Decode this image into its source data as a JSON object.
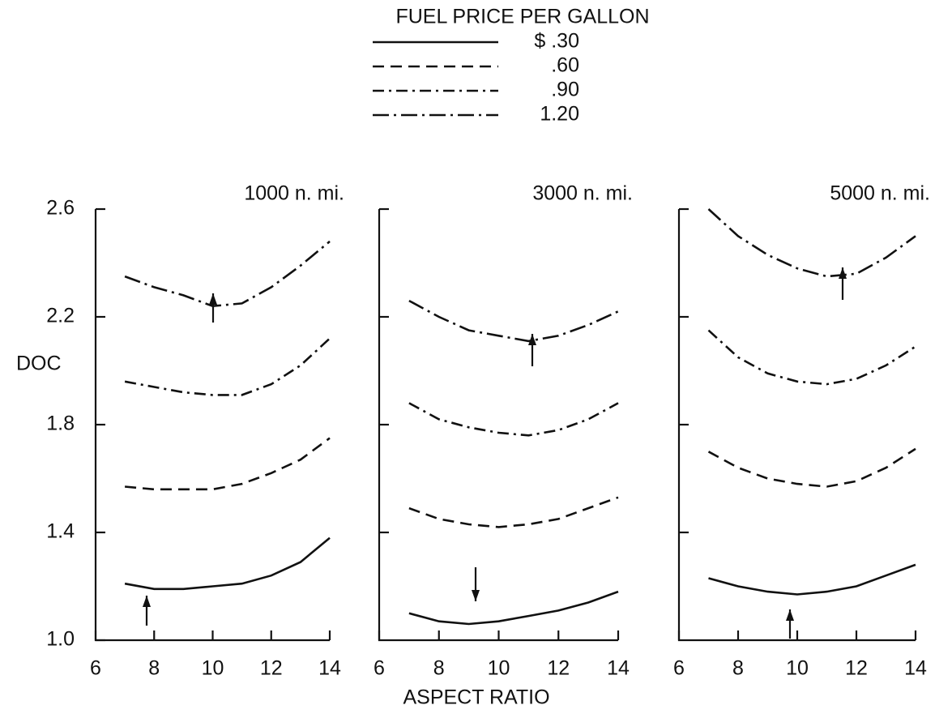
{
  "legend": {
    "title": "FUEL PRICE PER GALLON",
    "entries": [
      {
        "label": "$ .30",
        "dash": "none"
      },
      {
        "label": ".60",
        "dash": "14 8"
      },
      {
        "label": ".90",
        "dash": "14 6 3 6"
      },
      {
        "label": "1.20",
        "dash": "20 6 3 6"
      }
    ]
  },
  "y_label": "DOC",
  "x_label": "ASPECT RATIO",
  "chart_data": [
    {
      "type": "line",
      "title": "1000 n. mi.",
      "x": [
        7,
        8,
        9,
        10,
        11,
        12,
        13,
        14
      ],
      "series": [
        {
          "color": "#111111",
          "values": [
            1.21,
            1.19,
            1.19,
            1.2,
            1.21,
            1.24,
            1.29,
            1.38
          ]
        },
        {
          "color": "#111111",
          "values": [
            1.57,
            1.56,
            1.56,
            1.56,
            1.58,
            1.62,
            1.67,
            1.75
          ]
        },
        {
          "color": "#111111",
          "values": [
            1.96,
            1.94,
            1.92,
            1.91,
            1.91,
            1.95,
            2.02,
            2.12
          ]
        },
        {
          "color": "#111111",
          "values": [
            2.35,
            2.31,
            2.28,
            2.24,
            2.25,
            2.31,
            2.39,
            2.48
          ]
        }
      ],
      "xlim": [
        6,
        14
      ],
      "ylim": [
        1,
        2.6
      ],
      "xticks": [
        6,
        8,
        10,
        12,
        14
      ],
      "yticks": [
        {
          "value": 1,
          "label": "1.0"
        },
        1.4,
        1.8,
        2.2,
        2.6
      ],
      "show_ytick_labels": true
    },
    {
      "type": "line",
      "title": "3000 n. mi.",
      "x": [
        7,
        8,
        9,
        10,
        11,
        12,
        13,
        14
      ],
      "series": [
        {
          "color": "#111111",
          "values": [
            1.1,
            1.07,
            1.06,
            1.07,
            1.09,
            1.11,
            1.14,
            1.18
          ]
        },
        {
          "color": "#111111",
          "values": [
            1.49,
            1.45,
            1.43,
            1.42,
            1.43,
            1.45,
            1.49,
            1.53
          ]
        },
        {
          "color": "#111111",
          "values": [
            1.88,
            1.82,
            1.79,
            1.77,
            1.76,
            1.78,
            1.82,
            1.88
          ]
        },
        {
          "color": "#111111",
          "values": [
            2.26,
            2.2,
            2.15,
            2.13,
            2.11,
            2.13,
            2.17,
            2.22
          ]
        }
      ],
      "xlim": [
        6,
        14
      ],
      "ylim": [
        1,
        2.6
      ],
      "xticks": [
        6,
        8,
        10,
        12,
        14
      ],
      "yticks": [
        1.4,
        1.8,
        2.2,
        2.6
      ],
      "show_ytick_labels": false
    },
    {
      "type": "line",
      "title": "5000 n. mi.",
      "x": [
        7,
        8,
        9,
        10,
        11,
        12,
        13,
        14
      ],
      "series": [
        {
          "color": "#111111",
          "values": [
            1.23,
            1.2,
            1.18,
            1.17,
            1.18,
            1.2,
            1.24,
            1.28
          ]
        },
        {
          "color": "#111111",
          "values": [
            1.7,
            1.64,
            1.6,
            1.58,
            1.57,
            1.59,
            1.64,
            1.71
          ]
        },
        {
          "color": "#111111",
          "values": [
            2.15,
            2.05,
            1.99,
            1.96,
            1.95,
            1.97,
            2.02,
            2.09
          ]
        },
        {
          "color": "#111111",
          "values": [
            2.6,
            2.5,
            2.43,
            2.38,
            2.35,
            2.36,
            2.42,
            2.5
          ]
        }
      ],
      "xlim": [
        6,
        14
      ],
      "ylim": [
        1,
        2.6
      ],
      "xticks": [
        6,
        8,
        10,
        12,
        14
      ],
      "yticks": [
        1.4,
        1.8,
        2.2,
        2.6
      ],
      "show_ytick_labels": false
    }
  ]
}
